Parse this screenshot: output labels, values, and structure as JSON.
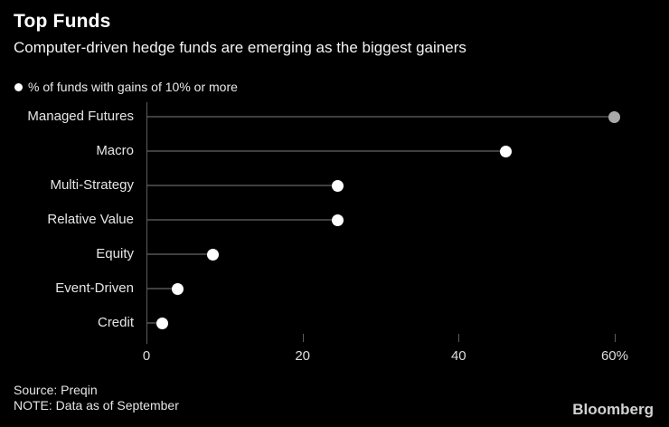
{
  "header": {
    "title": "Top Funds",
    "subtitle": "Computer-driven hedge funds are emerging as the biggest gainers"
  },
  "legend": {
    "label": "% of funds with gains of 10% or more"
  },
  "chart_data": {
    "type": "bar",
    "variant": "horizontal-lollipop",
    "title": "Top Funds",
    "subtitle": "Computer-driven hedge funds are emerging as the biggest gainers",
    "series_label": "% of funds with gains of 10% or more",
    "categories": [
      "Managed Futures",
      "Macro",
      "Multi-Strategy",
      "Relative Value",
      "Equity",
      "Event-Driven",
      "Credit"
    ],
    "values": [
      60,
      46,
      24.5,
      24.5,
      8.5,
      4,
      2
    ],
    "point_colors": [
      "#a9a9a9",
      "#ffffff",
      "#ffffff",
      "#ffffff",
      "#ffffff",
      "#ffffff",
      "#ffffff"
    ],
    "unit": "%",
    "xlim": [
      0,
      65
    ],
    "xticks": [
      {
        "value": 0,
        "label": "0"
      },
      {
        "value": 20,
        "label": "20"
      },
      {
        "value": 40,
        "label": "40"
      },
      {
        "value": 60,
        "label": "60%"
      }
    ],
    "grid": false,
    "legend_position": "top-left",
    "colors": {
      "background": "#000000",
      "dot_default": "#ffffff",
      "dot_highlight": "#a9a9a9",
      "stem": "#3f3f3f",
      "axis": "#5d5d5d",
      "text": "#e6e6e6"
    }
  },
  "footer": {
    "source": "Source: Preqin",
    "note": "NOTE: Data as of September",
    "brand": "Bloomberg"
  }
}
